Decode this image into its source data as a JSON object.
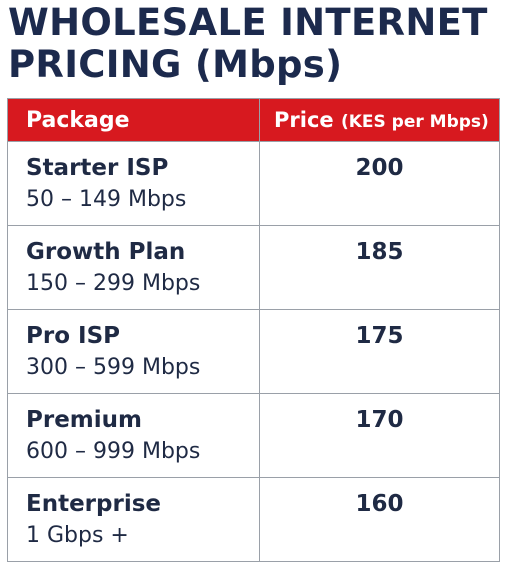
{
  "title": {
    "line1": "WHOLESALE INTERNET",
    "line2": "PRICING (Mbps)"
  },
  "table": {
    "headers": {
      "package": "Package",
      "price": "Price",
      "price_unit": "(KES per Mbps)"
    },
    "rows": [
      {
        "name": "Starter ISP",
        "range": "50 – 149 Mbps",
        "price": "200"
      },
      {
        "name": "Growth Plan",
        "range": "150 – 299 Mbps",
        "price": "185"
      },
      {
        "name": "Pro ISP",
        "range": "300 – 599 Mbps",
        "price": "175"
      },
      {
        "name": "Premium",
        "range": "600 – 999 Mbps",
        "price": "170"
      },
      {
        "name": "Enterprise",
        "range": "1 Gbps +",
        "price": "160"
      }
    ]
  },
  "colors": {
    "header_bg": "#d7191f",
    "text": "#1f2a44",
    "border": "#9aa0a8"
  }
}
